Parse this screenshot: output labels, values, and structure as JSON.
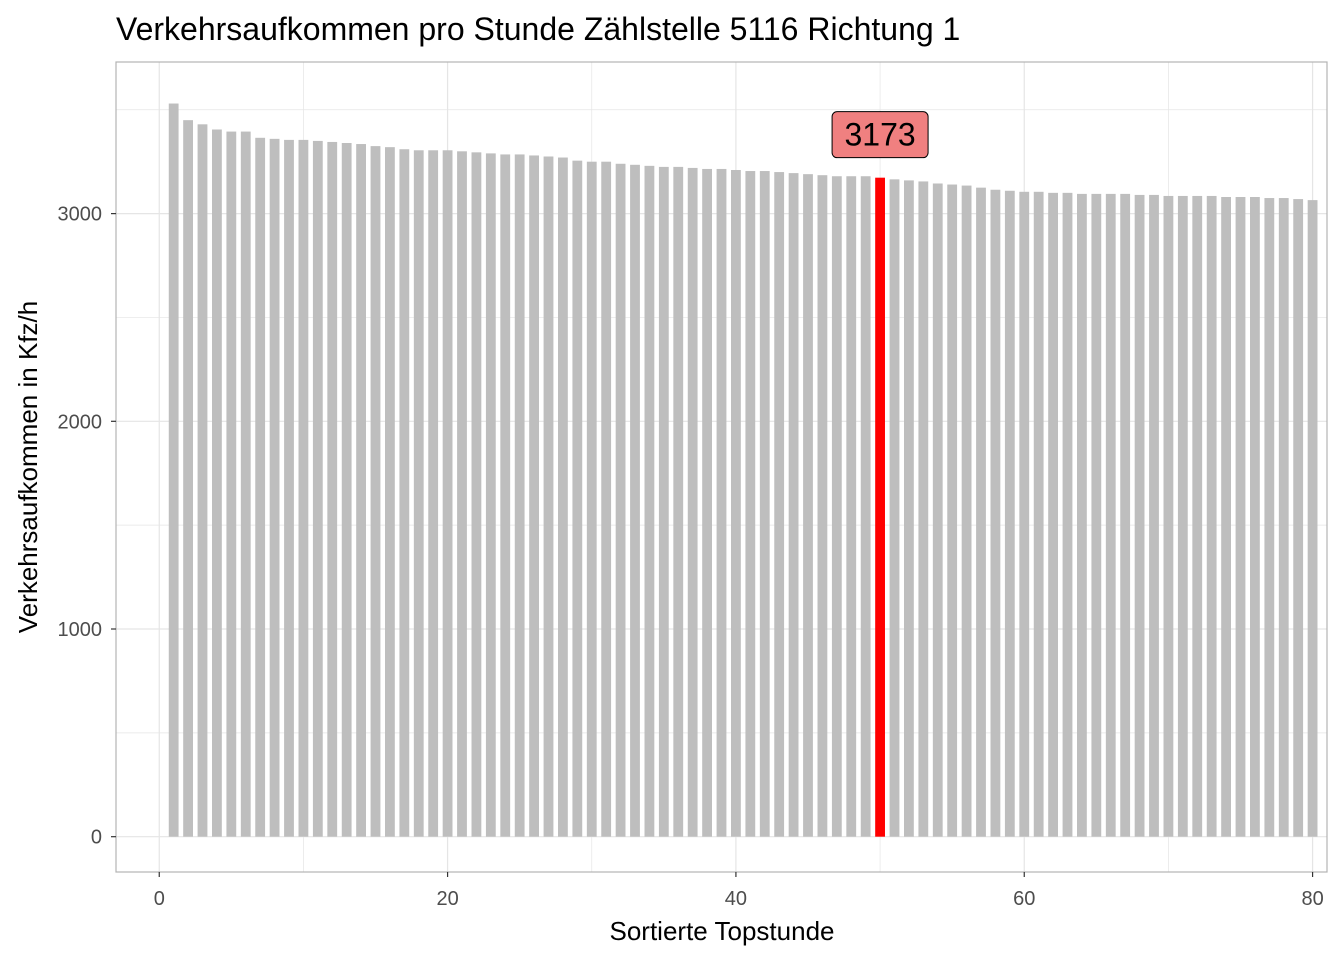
{
  "chart_data": {
    "type": "bar",
    "title": "Verkehrsaufkommen pro Stunde Zählstelle 5116 Richtung 1",
    "xlabel": "Sortierte Topstunde",
    "ylabel": "Verkehrsaufkommen in Kfz/h",
    "xlim": [
      -3,
      81
    ],
    "ylim": [
      -170,
      3730
    ],
    "x_ticks": [
      0,
      20,
      40,
      60,
      80
    ],
    "x_tick_labels": [
      "0",
      "20",
      "40",
      "60",
      "80"
    ],
    "y_ticks": [
      0,
      1000,
      2000,
      3000
    ],
    "y_tick_labels": [
      "0",
      "1000",
      "2000",
      "3000"
    ],
    "grid": true,
    "legend": "none",
    "highlight_index": 50,
    "highlight_label": "3173",
    "colors": {
      "bar": "#bebebe",
      "highlight": "#ff0000",
      "label_fill": "#f08080",
      "grid": "#e5e5e5",
      "panel_border": "#b3b3b3"
    },
    "x": [
      1,
      2,
      3,
      4,
      5,
      6,
      7,
      8,
      9,
      10,
      11,
      12,
      13,
      14,
      15,
      16,
      17,
      18,
      19,
      20,
      21,
      22,
      23,
      24,
      25,
      26,
      27,
      28,
      29,
      30,
      31,
      32,
      33,
      34,
      35,
      36,
      37,
      38,
      39,
      40,
      41,
      42,
      43,
      44,
      45,
      46,
      47,
      48,
      49,
      50,
      51,
      52,
      53,
      54,
      55,
      56,
      57,
      58,
      59,
      60,
      61,
      62,
      63,
      64,
      65,
      66,
      67,
      68,
      69,
      70,
      71,
      72,
      73,
      74,
      75,
      76,
      77,
      78,
      79,
      80
    ],
    "values": [
      3530,
      3450,
      3430,
      3405,
      3395,
      3395,
      3365,
      3360,
      3355,
      3355,
      3350,
      3345,
      3340,
      3335,
      3325,
      3320,
      3310,
      3305,
      3305,
      3305,
      3300,
      3295,
      3290,
      3285,
      3285,
      3280,
      3275,
      3270,
      3255,
      3250,
      3250,
      3240,
      3235,
      3230,
      3225,
      3225,
      3220,
      3215,
      3215,
      3210,
      3205,
      3205,
      3200,
      3195,
      3190,
      3185,
      3180,
      3180,
      3180,
      3173,
      3165,
      3160,
      3155,
      3145,
      3140,
      3135,
      3125,
      3115,
      3110,
      3105,
      3105,
      3100,
      3100,
      3095,
      3095,
      3095,
      3095,
      3090,
      3090,
      3085,
      3085,
      3085,
      3085,
      3080,
      3080,
      3080,
      3075,
      3075,
      3070,
      3065
    ]
  }
}
